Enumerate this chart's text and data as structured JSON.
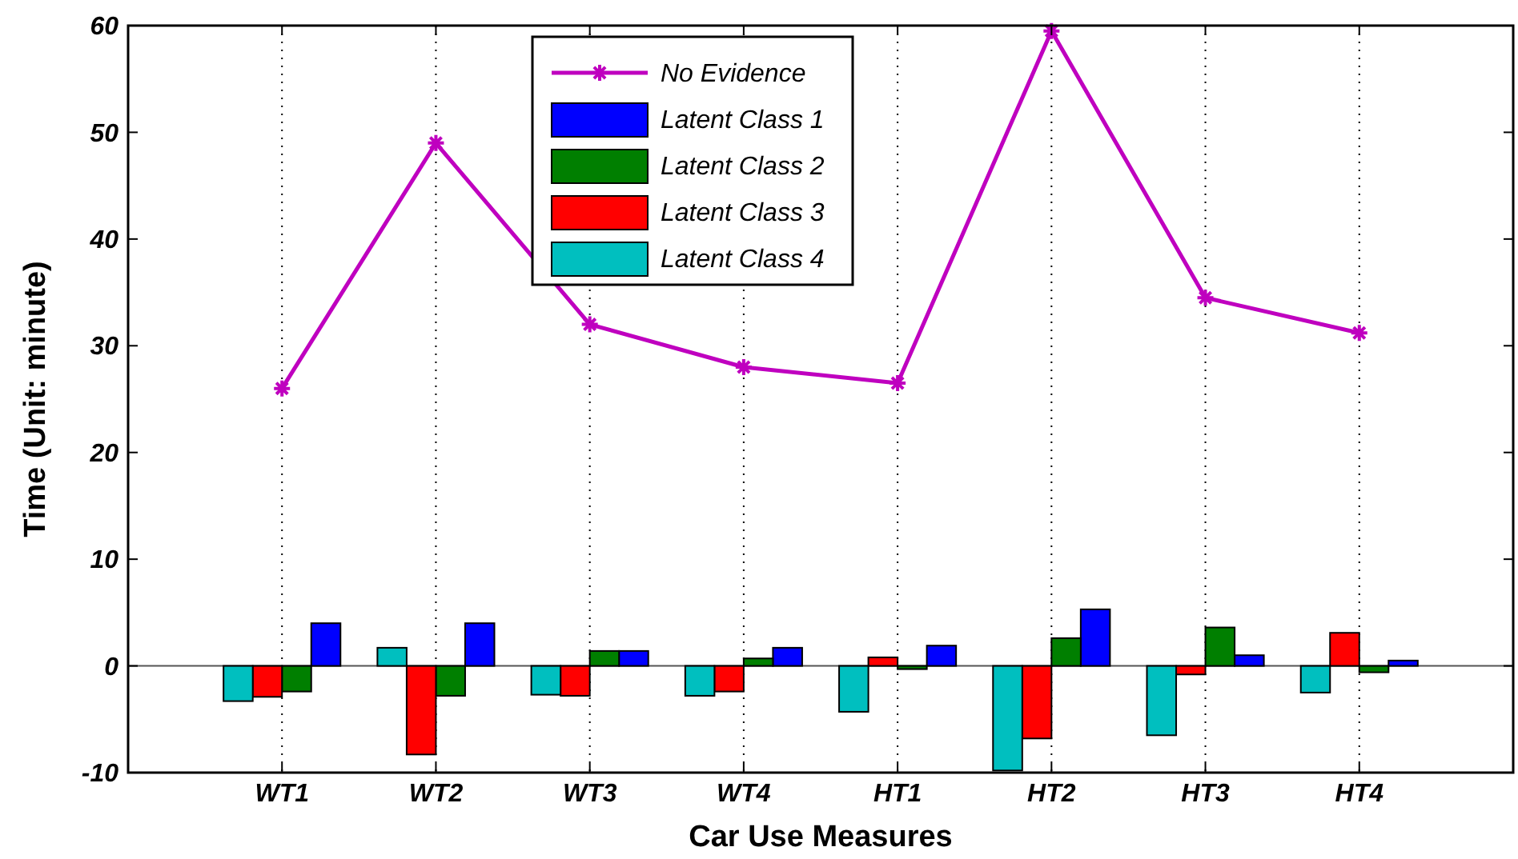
{
  "chart_data": {
    "type": "bar",
    "xlabel": "Car Use Measures",
    "ylabel": "Time (Unit: minute)",
    "categories": [
      "WT1",
      "WT2",
      "WT3",
      "WT4",
      "HT1",
      "HT2",
      "HT3",
      "HT4"
    ],
    "series": [
      {
        "name": "No Evidence",
        "type": "line",
        "color": "#bf00bf",
        "values": [
          26,
          49,
          32,
          28,
          26.5,
          59.5,
          34.5,
          31.2
        ]
      },
      {
        "name": "Latent Class 1",
        "color": "#0000ff",
        "values": [
          4,
          4,
          1.4,
          1.7,
          1.9,
          5.3,
          1,
          0.5
        ]
      },
      {
        "name": "Latent Class 2",
        "color": "#007f00",
        "values": [
          -2.4,
          -2.8,
          1.4,
          0.7,
          -0.3,
          2.6,
          3.6,
          -0.6
        ]
      },
      {
        "name": "Latent Class 3",
        "color": "#ff0000",
        "values": [
          -2.9,
          -8.3,
          -2.8,
          -2.4,
          0.8,
          -6.8,
          -0.8,
          3.1
        ]
      },
      {
        "name": "Latent Class 4",
        "color": "#00bfbf",
        "values": [
          -3.3,
          1.7,
          -2.7,
          -2.8,
          -4.3,
          -9.8,
          -6.5,
          -2.5
        ]
      }
    ],
    "ylim": [
      -10,
      60
    ],
    "yticks": [
      -10,
      0,
      10,
      20,
      30,
      40,
      50,
      60
    ],
    "grid": "x",
    "legend": "top",
    "marker": "cross"
  }
}
